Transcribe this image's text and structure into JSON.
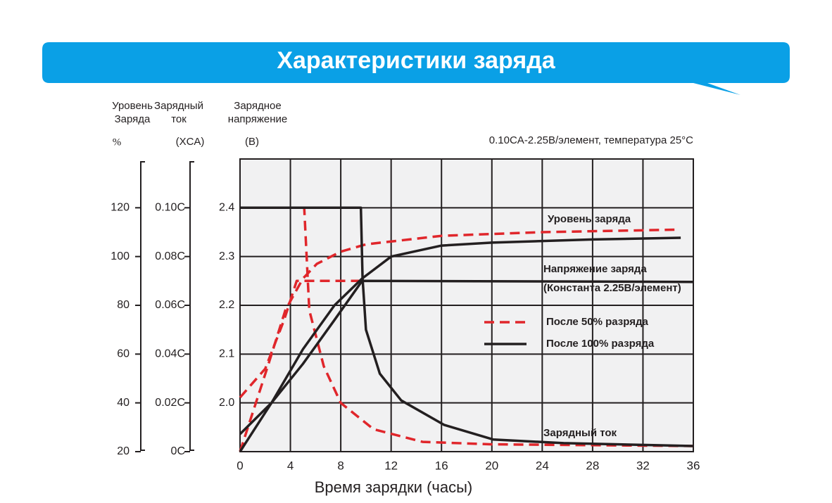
{
  "chart_data": {
    "type": "line",
    "title": "Характеристики заряда",
    "subtitle": "0.10CA-2.25В/элемент, температура 25°C",
    "xlabel": "Время зарядки (часы)",
    "axis_headers": {
      "y2": [
        "Уровень",
        "Заряда"
      ],
      "y2_unit": "%",
      "y3": [
        "Зарядный",
        "ток"
      ],
      "y3_unit": "(XCA)",
      "y": [
        "Зарядное",
        "напряжение"
      ],
      "y_unit": "(B)"
    },
    "xlim": [
      0,
      36
    ],
    "xticks": [
      0,
      4,
      8,
      12,
      16,
      20,
      24,
      28,
      32,
      36
    ],
    "ylim": [
      1.9,
      2.5
    ],
    "yticks": [
      {
        "value": 2,
        "label": "2.0"
      },
      2.1,
      2.2,
      2.3,
      2.4
    ],
    "y2lim": [
      20,
      140
    ],
    "y2ticks": [
      20,
      40,
      60,
      80,
      100,
      120
    ],
    "y3lim": [
      0,
      0.12
    ],
    "y3ticks": [
      {
        "value": 0,
        "label": "0C"
      },
      {
        "value": 0.02,
        "label": "0.02C"
      },
      {
        "value": 0.04,
        "label": "0.04C"
      },
      {
        "value": 0.06,
        "label": "0.06C"
      },
      {
        "value": 0.08,
        "label": "0.08C"
      },
      {
        "value": 0.1,
        "label": "0.10C"
      }
    ],
    "grid": true,
    "legend": [
      {
        "name": "После 50% разряда",
        "color": "#e0262b",
        "dash": true
      },
      {
        "name": "После 100% разряда",
        "color": "#231f20",
        "dash": false
      }
    ],
    "annotations": [
      "Уровень заряда",
      "Напряжение заряда",
      "(Константа 2.25В/элемент)",
      "Зарядный ток"
    ],
    "series": [
      {
        "axis": "y",
        "color": "#e0262b",
        "dash": true,
        "x": [
          0,
          2,
          3.5,
          4.5,
          9.7
        ],
        "values": [
          2.011,
          2.07,
          2.17,
          2.25,
          2.25
        ]
      },
      {
        "axis": "y2",
        "color": "#e0262b",
        "dash": true,
        "x": [
          0,
          2.2,
          3.6,
          5,
          6.1,
          8,
          10,
          16,
          24,
          34.5
        ],
        "values": [
          20,
          55,
          78,
          91,
          97,
          102,
          105,
          108.5,
          110,
          111
        ]
      },
      {
        "axis": "y3",
        "color": "#e0262b",
        "dash": true,
        "x": [
          4.9,
          5.1,
          5.5,
          6.65,
          8,
          10.6,
          14.5,
          20,
          36
        ],
        "values": [
          0.1,
          0.1,
          0.058,
          0.035,
          0.02,
          0.0092,
          0.004,
          0.003,
          0.0023
        ]
      },
      {
        "axis": "y",
        "color": "#231f20",
        "dash": false,
        "x": [
          0,
          2.5,
          5,
          7.5,
          9.7,
          36
        ],
        "values": [
          1.936,
          2.0,
          2.08,
          2.17,
          2.25,
          2.248
        ]
      },
      {
        "axis": "y2",
        "color": "#231f20",
        "dash": false,
        "x": [
          0,
          2.5,
          5,
          7.5,
          9.7,
          12,
          16,
          20,
          28,
          35
        ],
        "values": [
          20,
          40,
          62,
          80,
          91,
          100,
          104.5,
          105.7,
          107,
          107.7
        ]
      },
      {
        "axis": "y3",
        "color": "#231f20",
        "dash": false,
        "x": [
          0,
          9.6,
          9.73,
          10,
          11.1,
          12.8,
          16.2,
          20.1,
          25.7,
          36
        ],
        "values": [
          0.1,
          0.1,
          0.071,
          0.05,
          0.032,
          0.021,
          0.011,
          0.005,
          0.0035,
          0.0023
        ]
      }
    ]
  }
}
